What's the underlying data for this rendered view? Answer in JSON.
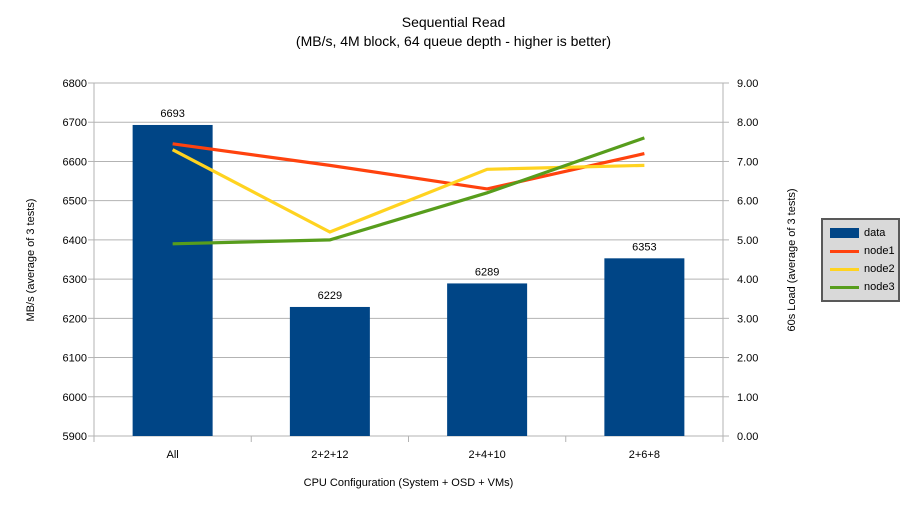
{
  "title": "Sequential Read",
  "subtitle": "(MB/s, 4M block, 64 queue depth - higher is better)",
  "chart_data": {
    "type": "bar",
    "subtype": "combo-bar-line-dual-axis",
    "categories": [
      "All",
      "2+2+12",
      "2+4+10",
      "2+6+8"
    ],
    "xlabel": "CPU Configuration (System + OSD + VMs)",
    "ylabel_left": "MB/s (average of 3 tests)",
    "ylabel_right": "60s Load (average of 3 tests)",
    "axis_left": {
      "min": 5900,
      "max": 6800,
      "step": 100,
      "decimals": 0
    },
    "axis_right": {
      "min": 0,
      "max": 9,
      "step": 1,
      "decimals": 2
    },
    "bar_series": {
      "name": "data",
      "axis": "left",
      "color": "#004586",
      "values": [
        6693,
        6229,
        6289,
        6353
      ]
    },
    "line_series": [
      {
        "name": "node1",
        "axis": "right",
        "color": "#ff420e",
        "values": [
          7.45,
          6.9,
          6.3,
          7.2
        ]
      },
      {
        "name": "node2",
        "axis": "right",
        "color": "#ffd320",
        "values": [
          7.3,
          5.2,
          6.8,
          6.9
        ]
      },
      {
        "name": "node3",
        "axis": "right",
        "color": "#579d1c",
        "values": [
          4.9,
          5.0,
          6.2,
          7.6
        ]
      }
    ],
    "grid": {
      "color": "#b3b3b3",
      "horizontal": true,
      "vertical": false
    },
    "legend": {
      "position": "right",
      "bg": "#d9d9d9",
      "border": "#595959",
      "entries": [
        {
          "label": "data",
          "swatch": "rect",
          "color": "#004586"
        },
        {
          "label": "node1",
          "swatch": "line",
          "color": "#ff420e"
        },
        {
          "label": "node2",
          "swatch": "line",
          "color": "#ffd320"
        },
        {
          "label": "node3",
          "swatch": "line",
          "color": "#579d1c"
        }
      ]
    }
  }
}
